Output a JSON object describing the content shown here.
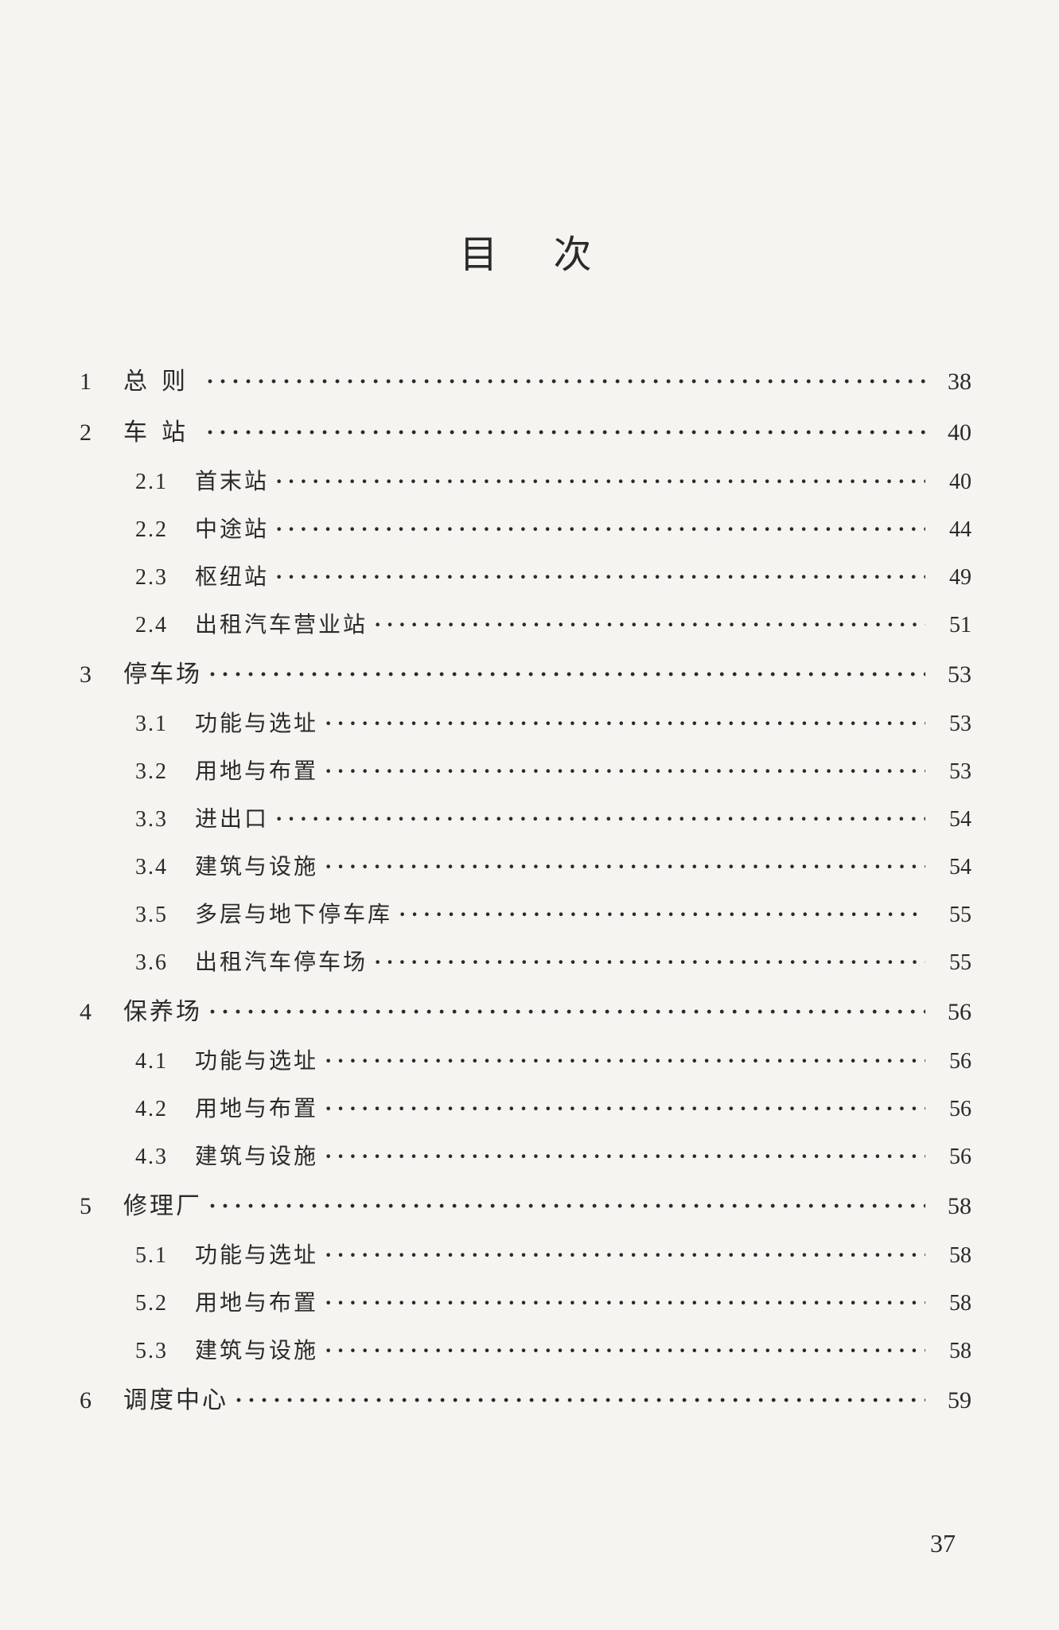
{
  "page_title": "目次",
  "footer_page_number": "37",
  "entries": [
    {
      "level": 1,
      "num": "1",
      "title": "总则",
      "spaced": true,
      "page": "38"
    },
    {
      "level": 1,
      "num": "2",
      "title": "车站",
      "spaced": true,
      "page": "40"
    },
    {
      "level": 2,
      "num": "2.1",
      "title": "首末站",
      "page": "40"
    },
    {
      "level": 2,
      "num": "2.2",
      "title": "中途站",
      "page": "44"
    },
    {
      "level": 2,
      "num": "2.3",
      "title": "枢纽站",
      "page": "49"
    },
    {
      "level": 2,
      "num": "2.4",
      "title": "出租汽车营业站",
      "page": "51"
    },
    {
      "level": 1,
      "num": "3",
      "title": "停车场",
      "page": "53"
    },
    {
      "level": 2,
      "num": "3.1",
      "title": "功能与选址",
      "page": "53"
    },
    {
      "level": 2,
      "num": "3.2",
      "title": "用地与布置",
      "page": "53"
    },
    {
      "level": 2,
      "num": "3.3",
      "title": "进出口",
      "page": "54"
    },
    {
      "level": 2,
      "num": "3.4",
      "title": "建筑与设施",
      "page": "54"
    },
    {
      "level": 2,
      "num": "3.5",
      "title": "多层与地下停车库",
      "page": "55"
    },
    {
      "level": 2,
      "num": "3.6",
      "title": "出租汽车停车场",
      "page": "55"
    },
    {
      "level": 1,
      "num": "4",
      "title": "保养场",
      "page": "56"
    },
    {
      "level": 2,
      "num": "4.1",
      "title": "功能与选址",
      "page": "56"
    },
    {
      "level": 2,
      "num": "4.2",
      "title": "用地与布置",
      "page": "56"
    },
    {
      "level": 2,
      "num": "4.3",
      "title": "建筑与设施",
      "page": "56"
    },
    {
      "level": 1,
      "num": "5",
      "title": "修理厂",
      "page": "58"
    },
    {
      "level": 2,
      "num": "5.1",
      "title": "功能与选址",
      "page": "58"
    },
    {
      "level": 2,
      "num": "5.2",
      "title": "用地与布置",
      "page": "58"
    },
    {
      "level": 2,
      "num": "5.3",
      "title": "建筑与设施",
      "page": "58"
    },
    {
      "level": 1,
      "num": "6",
      "title": "调度中心",
      "page": "59"
    }
  ],
  "colors": {
    "background": "#f5f4f0",
    "text": "#2a2a2a"
  },
  "typography": {
    "title_fontsize": 48,
    "level1_fontsize": 30,
    "level2_fontsize": 28,
    "font_family": "SimSun"
  }
}
